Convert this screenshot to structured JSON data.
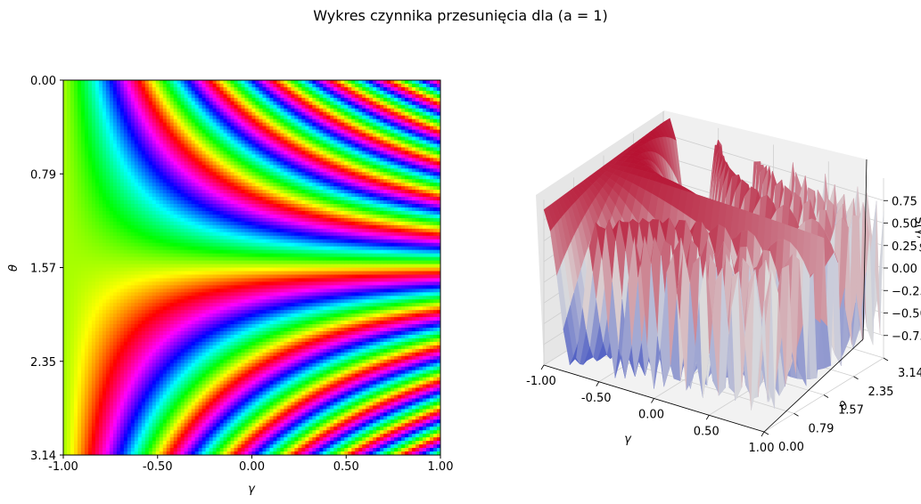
{
  "figure": {
    "title": "Wykres czynnika przesunięcia dla (a = 1)"
  },
  "chart_data": [
    {
      "type": "heatmap",
      "colormap": "hsv",
      "xlabel": "γ",
      "ylabel": "θ",
      "xlim": [
        -1.0,
        1.0
      ],
      "ylim": [
        0.0,
        3.14
      ],
      "y_inverted": true,
      "xticks": [
        "-1.00",
        "-0.50",
        "0.00",
        "0.50",
        "1.00"
      ],
      "yticks": [
        "0.00",
        "0.79",
        "1.57",
        "2.35",
        "3.14"
      ],
      "description": "phase of shift factor S(γ, θ); bands fan out from θ = 1.57 toward γ = 1"
    },
    {
      "type": "surface",
      "colormap": "coolwarm",
      "xlabel": "γ",
      "ylabel": "θ",
      "zlabel": "S(γ, θ)",
      "xlim": [
        -1.0,
        1.0
      ],
      "ylim": [
        0.0,
        3.14
      ],
      "zlim": [
        -1.0,
        1.0
      ],
      "xticks": [
        "-1.00",
        "-0.50",
        "0.00",
        "0.50",
        "1.00"
      ],
      "yticks": [
        "0.00",
        "0.79",
        "1.57",
        "2.35",
        "3.14"
      ],
      "zticks": [
        "0.75",
        "0.50",
        "0.25",
        "0.00",
        "−0.25",
        "−0.50",
        "−0.75"
      ]
    }
  ]
}
